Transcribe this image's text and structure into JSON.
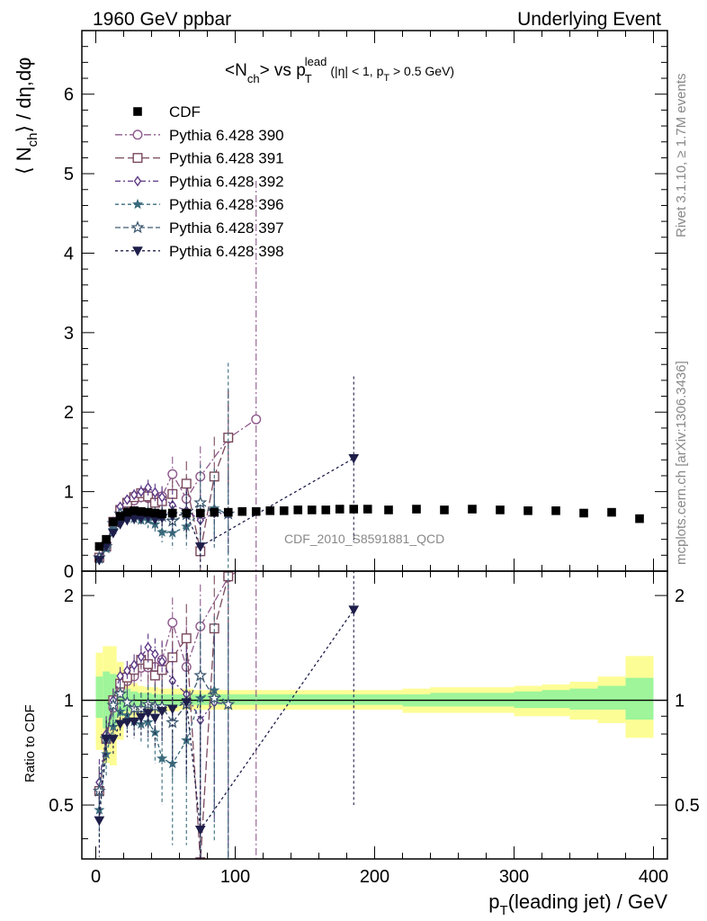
{
  "header": {
    "left": "1960 GeV ppbar",
    "right": "Underlying Event"
  },
  "side": {
    "rivet": "Rivet 3.1.10, ≥ 1.7M events",
    "mcplots": "mcplots.cern.ch [arXiv:1306.3436]"
  },
  "plot": {
    "title_main": "<N",
    "title_sub1": "ch",
    "title_mid": "> vs p",
    "title_sub2": "T",
    "title_sup": "lead",
    "title_cut1": "(|η| < 1, p",
    "title_cut_sub": "T",
    "title_cut2": " > 0.5 GeV)",
    "ylabel_a": "⟨ N",
    "ylabel_sub": "ch",
    "ylabel_b": "⟩ / dη,dφ",
    "ratio_ylabel": "Ratio to CDF",
    "xlabel_a": "p",
    "xlabel_sub": "T",
    "xlabel_b": "(leading jet) / GeV",
    "watermark": "CDF_2010_S8591881_QCD"
  },
  "chart_data": {
    "type": "scatter",
    "xlim": [
      -10,
      410
    ],
    "ylim": [
      0,
      6.8
    ],
    "ratio_ylim": [
      0.35,
      2.35
    ],
    "log_ratio": true,
    "x_ticks": [
      0,
      100,
      200,
      300,
      400
    ],
    "y_ticks": [
      0,
      1,
      2,
      3,
      4,
      5,
      6
    ],
    "ratio_ticks": [
      0.5,
      1,
      2
    ],
    "legend_position": "top-left",
    "reference": {
      "name": "CDF",
      "x": [
        2.5,
        7.5,
        12.5,
        17.5,
        22.5,
        27.5,
        32.5,
        37.5,
        42.5,
        47.5,
        55,
        65,
        75,
        85,
        95,
        105,
        115,
        125,
        135,
        145,
        155,
        165,
        175,
        185,
        195,
        210,
        230,
        250,
        270,
        290,
        310,
        330,
        350,
        370,
        390
      ],
      "y": [
        0.31,
        0.4,
        0.62,
        0.69,
        0.74,
        0.76,
        0.75,
        0.74,
        0.73,
        0.72,
        0.73,
        0.73,
        0.73,
        0.74,
        0.74,
        0.75,
        0.75,
        0.76,
        0.76,
        0.77,
        0.77,
        0.77,
        0.78,
        0.78,
        0.78,
        0.77,
        0.78,
        0.77,
        0.78,
        0.77,
        0.76,
        0.76,
        0.73,
        0.74,
        0.66
      ]
    },
    "bands": {
      "edges": [
        0,
        5,
        10,
        15,
        20,
        25,
        30,
        35,
        40,
        45,
        50,
        60,
        70,
        80,
        90,
        100,
        110,
        120,
        130,
        140,
        150,
        160,
        170,
        180,
        190,
        200,
        220,
        240,
        260,
        280,
        300,
        320,
        340,
        360,
        380,
        400
      ],
      "inner": [
        [
          0.89,
          1.17
        ],
        [
          0.83,
          1.21
        ],
        [
          0.84,
          1.19
        ],
        [
          0.9,
          1.12
        ],
        [
          0.93,
          1.08
        ],
        [
          0.95,
          1.06
        ],
        [
          0.96,
          1.05
        ],
        [
          0.96,
          1.05
        ],
        [
          0.96,
          1.04
        ],
        [
          0.96,
          1.04
        ],
        [
          0.96,
          1.04
        ],
        [
          0.97,
          1.04
        ],
        [
          0.97,
          1.04
        ],
        [
          0.97,
          1.04
        ],
        [
          0.97,
          1.04
        ],
        [
          0.97,
          1.04
        ],
        [
          0.97,
          1.04
        ],
        [
          0.97,
          1.04
        ],
        [
          0.97,
          1.04
        ],
        [
          0.97,
          1.04
        ],
        [
          0.97,
          1.04
        ],
        [
          0.97,
          1.04
        ],
        [
          0.97,
          1.04
        ],
        [
          0.97,
          1.04
        ],
        [
          0.97,
          1.04
        ],
        [
          0.97,
          1.04
        ],
        [
          0.96,
          1.04
        ],
        [
          0.96,
          1.05
        ],
        [
          0.96,
          1.05
        ],
        [
          0.96,
          1.05
        ],
        [
          0.95,
          1.06
        ],
        [
          0.95,
          1.07
        ],
        [
          0.94,
          1.08
        ],
        [
          0.94,
          1.1
        ],
        [
          0.88,
          1.16
        ]
      ],
      "outer": [
        [
          0.72,
          1.37
        ],
        [
          0.66,
          1.43
        ],
        [
          0.65,
          1.43
        ],
        [
          0.77,
          1.29
        ],
        [
          0.86,
          1.16
        ],
        [
          0.89,
          1.12
        ],
        [
          0.9,
          1.1
        ],
        [
          0.91,
          1.09
        ],
        [
          0.92,
          1.09
        ],
        [
          0.92,
          1.08
        ],
        [
          0.93,
          1.08
        ],
        [
          0.94,
          1.08
        ],
        [
          0.94,
          1.07
        ],
        [
          0.94,
          1.07
        ],
        [
          0.94,
          1.07
        ],
        [
          0.94,
          1.07
        ],
        [
          0.94,
          1.07
        ],
        [
          0.94,
          1.07
        ],
        [
          0.94,
          1.07
        ],
        [
          0.94,
          1.07
        ],
        [
          0.94,
          1.07
        ],
        [
          0.94,
          1.07
        ],
        [
          0.94,
          1.07
        ],
        [
          0.94,
          1.07
        ],
        [
          0.94,
          1.07
        ],
        [
          0.94,
          1.07
        ],
        [
          0.92,
          1.08
        ],
        [
          0.92,
          1.09
        ],
        [
          0.92,
          1.09
        ],
        [
          0.92,
          1.09
        ],
        [
          0.9,
          1.1
        ],
        [
          0.9,
          1.11
        ],
        [
          0.88,
          1.13
        ],
        [
          0.86,
          1.17
        ],
        [
          0.78,
          1.34
        ]
      ]
    },
    "series": [
      {
        "name": "Pythia 6.428 390",
        "color": "#8e5a8c",
        "marker": "circle-open",
        "dash": "8 3 2 3",
        "x": [
          2.5,
          7.5,
          12.5,
          17.5,
          22.5,
          27.5,
          32.5,
          37.5,
          42.5,
          47.5,
          55,
          65,
          75,
          95,
          115
        ],
        "y": [
          0.17,
          0.31,
          0.59,
          0.75,
          0.84,
          0.89,
          0.93,
          0.92,
          0.91,
          0.94,
          1.22,
          0.91,
          1.19,
          1.67,
          1.91
        ],
        "err": [
          0.03,
          0.04,
          0.05,
          0.05,
          0.06,
          0.07,
          0.08,
          0.1,
          0.11,
          0.13,
          0.22,
          0.28,
          0.38,
          0.6,
          3.0
        ]
      },
      {
        "name": "Pythia 6.428 391",
        "color": "#7a4a5e",
        "marker": "square-open",
        "dash": "10 4",
        "x": [
          2.5,
          7.5,
          12.5,
          17.5,
          22.5,
          27.5,
          32.5,
          37.5,
          42.5,
          47.5,
          55,
          65,
          75,
          85,
          95
        ],
        "y": [
          0.17,
          0.31,
          0.62,
          0.77,
          0.86,
          0.93,
          0.98,
          0.94,
          0.86,
          0.88,
          0.97,
          1.1,
          0.25,
          1.19,
          1.68
        ],
        "err": [
          0.03,
          0.04,
          0.05,
          0.05,
          0.06,
          0.07,
          0.08,
          0.1,
          0.11,
          0.13,
          0.2,
          0.28,
          0.3,
          0.5,
          0.6
        ]
      },
      {
        "name": "Pythia 6.428 392",
        "color": "#5e3a86",
        "marker": "diamond-open",
        "dash": "6 3 2 3",
        "x": [
          2.5,
          7.5,
          12.5,
          17.5,
          22.5,
          27.5,
          32.5,
          37.5,
          42.5,
          47.5,
          55,
          65,
          75,
          85,
          95
        ],
        "y": [
          0.18,
          0.32,
          0.62,
          0.81,
          0.9,
          0.96,
          1.0,
          1.05,
          0.99,
          0.93,
          0.83,
          0.76,
          0.64,
          0.73,
          0.72
        ],
        "err": [
          0.03,
          0.04,
          0.05,
          0.05,
          0.06,
          0.07,
          0.08,
          0.1,
          0.11,
          0.13,
          0.2,
          0.28,
          0.32,
          0.4,
          0.5
        ]
      },
      {
        "name": "Pythia 6.428 396",
        "color": "#3a6a7c",
        "marker": "star-filled",
        "dash": "4 3",
        "x": [
          2.5,
          7.5,
          12.5,
          17.5,
          22.5,
          27.5,
          32.5,
          37.5,
          42.5,
          47.5,
          55,
          65,
          75,
          85,
          95
        ],
        "y": [
          0.15,
          0.28,
          0.52,
          0.64,
          0.67,
          0.66,
          0.64,
          0.64,
          0.59,
          0.49,
          0.48,
          0.56,
          0.74,
          0.79,
          0.72
        ],
        "err": [
          0.03,
          0.04,
          0.05,
          0.05,
          0.06,
          0.07,
          0.08,
          0.1,
          0.11,
          0.13,
          0.2,
          0.28,
          0.6,
          0.5,
          1.9
        ]
      },
      {
        "name": "Pythia 6.428 397",
        "color": "#3e5a72",
        "marker": "star-open",
        "dash": "6 3",
        "x": [
          2.5,
          7.5,
          12.5,
          17.5,
          22.5,
          27.5,
          32.5,
          37.5,
          42.5,
          47.5,
          55,
          65,
          75,
          85,
          95
        ],
        "y": [
          0.17,
          0.31,
          0.6,
          0.72,
          0.73,
          0.72,
          0.71,
          0.72,
          0.7,
          0.69,
          0.63,
          0.71,
          0.86,
          0.75,
          0.72
        ],
        "err": [
          0.03,
          0.04,
          0.05,
          0.05,
          0.06,
          0.07,
          0.08,
          0.1,
          0.11,
          0.13,
          0.2,
          0.28,
          0.4,
          0.4,
          0.5
        ]
      },
      {
        "name": "Pythia 6.428 398",
        "color": "#1e1e4a",
        "marker": "tri-down-filled",
        "dash": "3 3",
        "x": [
          2.5,
          7.5,
          12.5,
          17.5,
          22.5,
          27.5,
          32.5,
          37.5,
          42.5,
          47.5,
          55,
          65,
          75,
          185
        ],
        "y": [
          0.14,
          0.31,
          0.48,
          0.59,
          0.64,
          0.66,
          0.67,
          0.68,
          0.65,
          0.67,
          0.69,
          0.72,
          0.31,
          1.42
        ],
        "err": [
          0.03,
          0.04,
          0.05,
          0.05,
          0.06,
          0.07,
          0.08,
          0.1,
          0.11,
          0.13,
          0.2,
          0.28,
          0.45,
          1.03
        ]
      }
    ]
  }
}
